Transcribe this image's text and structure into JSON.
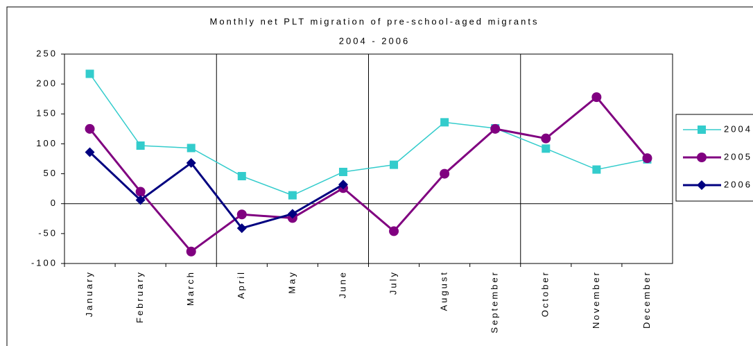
{
  "chart_data": {
    "type": "line",
    "title": "Monthly net PLT migration of pre-school-aged migrants",
    "subtitle": "2004 - 2006",
    "categories": [
      "January",
      "February",
      "March",
      "April",
      "May",
      "June",
      "July",
      "August",
      "September",
      "October",
      "November",
      "December"
    ],
    "series": [
      {
        "name": "2004",
        "color": "#33cccc",
        "marker": "square",
        "values": [
          217,
          97,
          93,
          46,
          14,
          53,
          65,
          136,
          126,
          92,
          57,
          74
        ]
      },
      {
        "name": "2005",
        "color": "#800080",
        "marker": "circle",
        "values": [
          125,
          20,
          -80,
          -18,
          -24,
          26,
          -46,
          50,
          125,
          109,
          178,
          76
        ]
      },
      {
        "name": "2006",
        "color": "#000080",
        "marker": "diamond",
        "values": [
          86,
          6,
          68,
          -41,
          -17,
          32,
          null,
          null,
          null,
          null,
          null,
          null
        ]
      }
    ],
    "ylim": [
      -100,
      250
    ],
    "yticks": [
      -100,
      -50,
      0,
      50,
      100,
      150,
      200,
      250
    ]
  }
}
